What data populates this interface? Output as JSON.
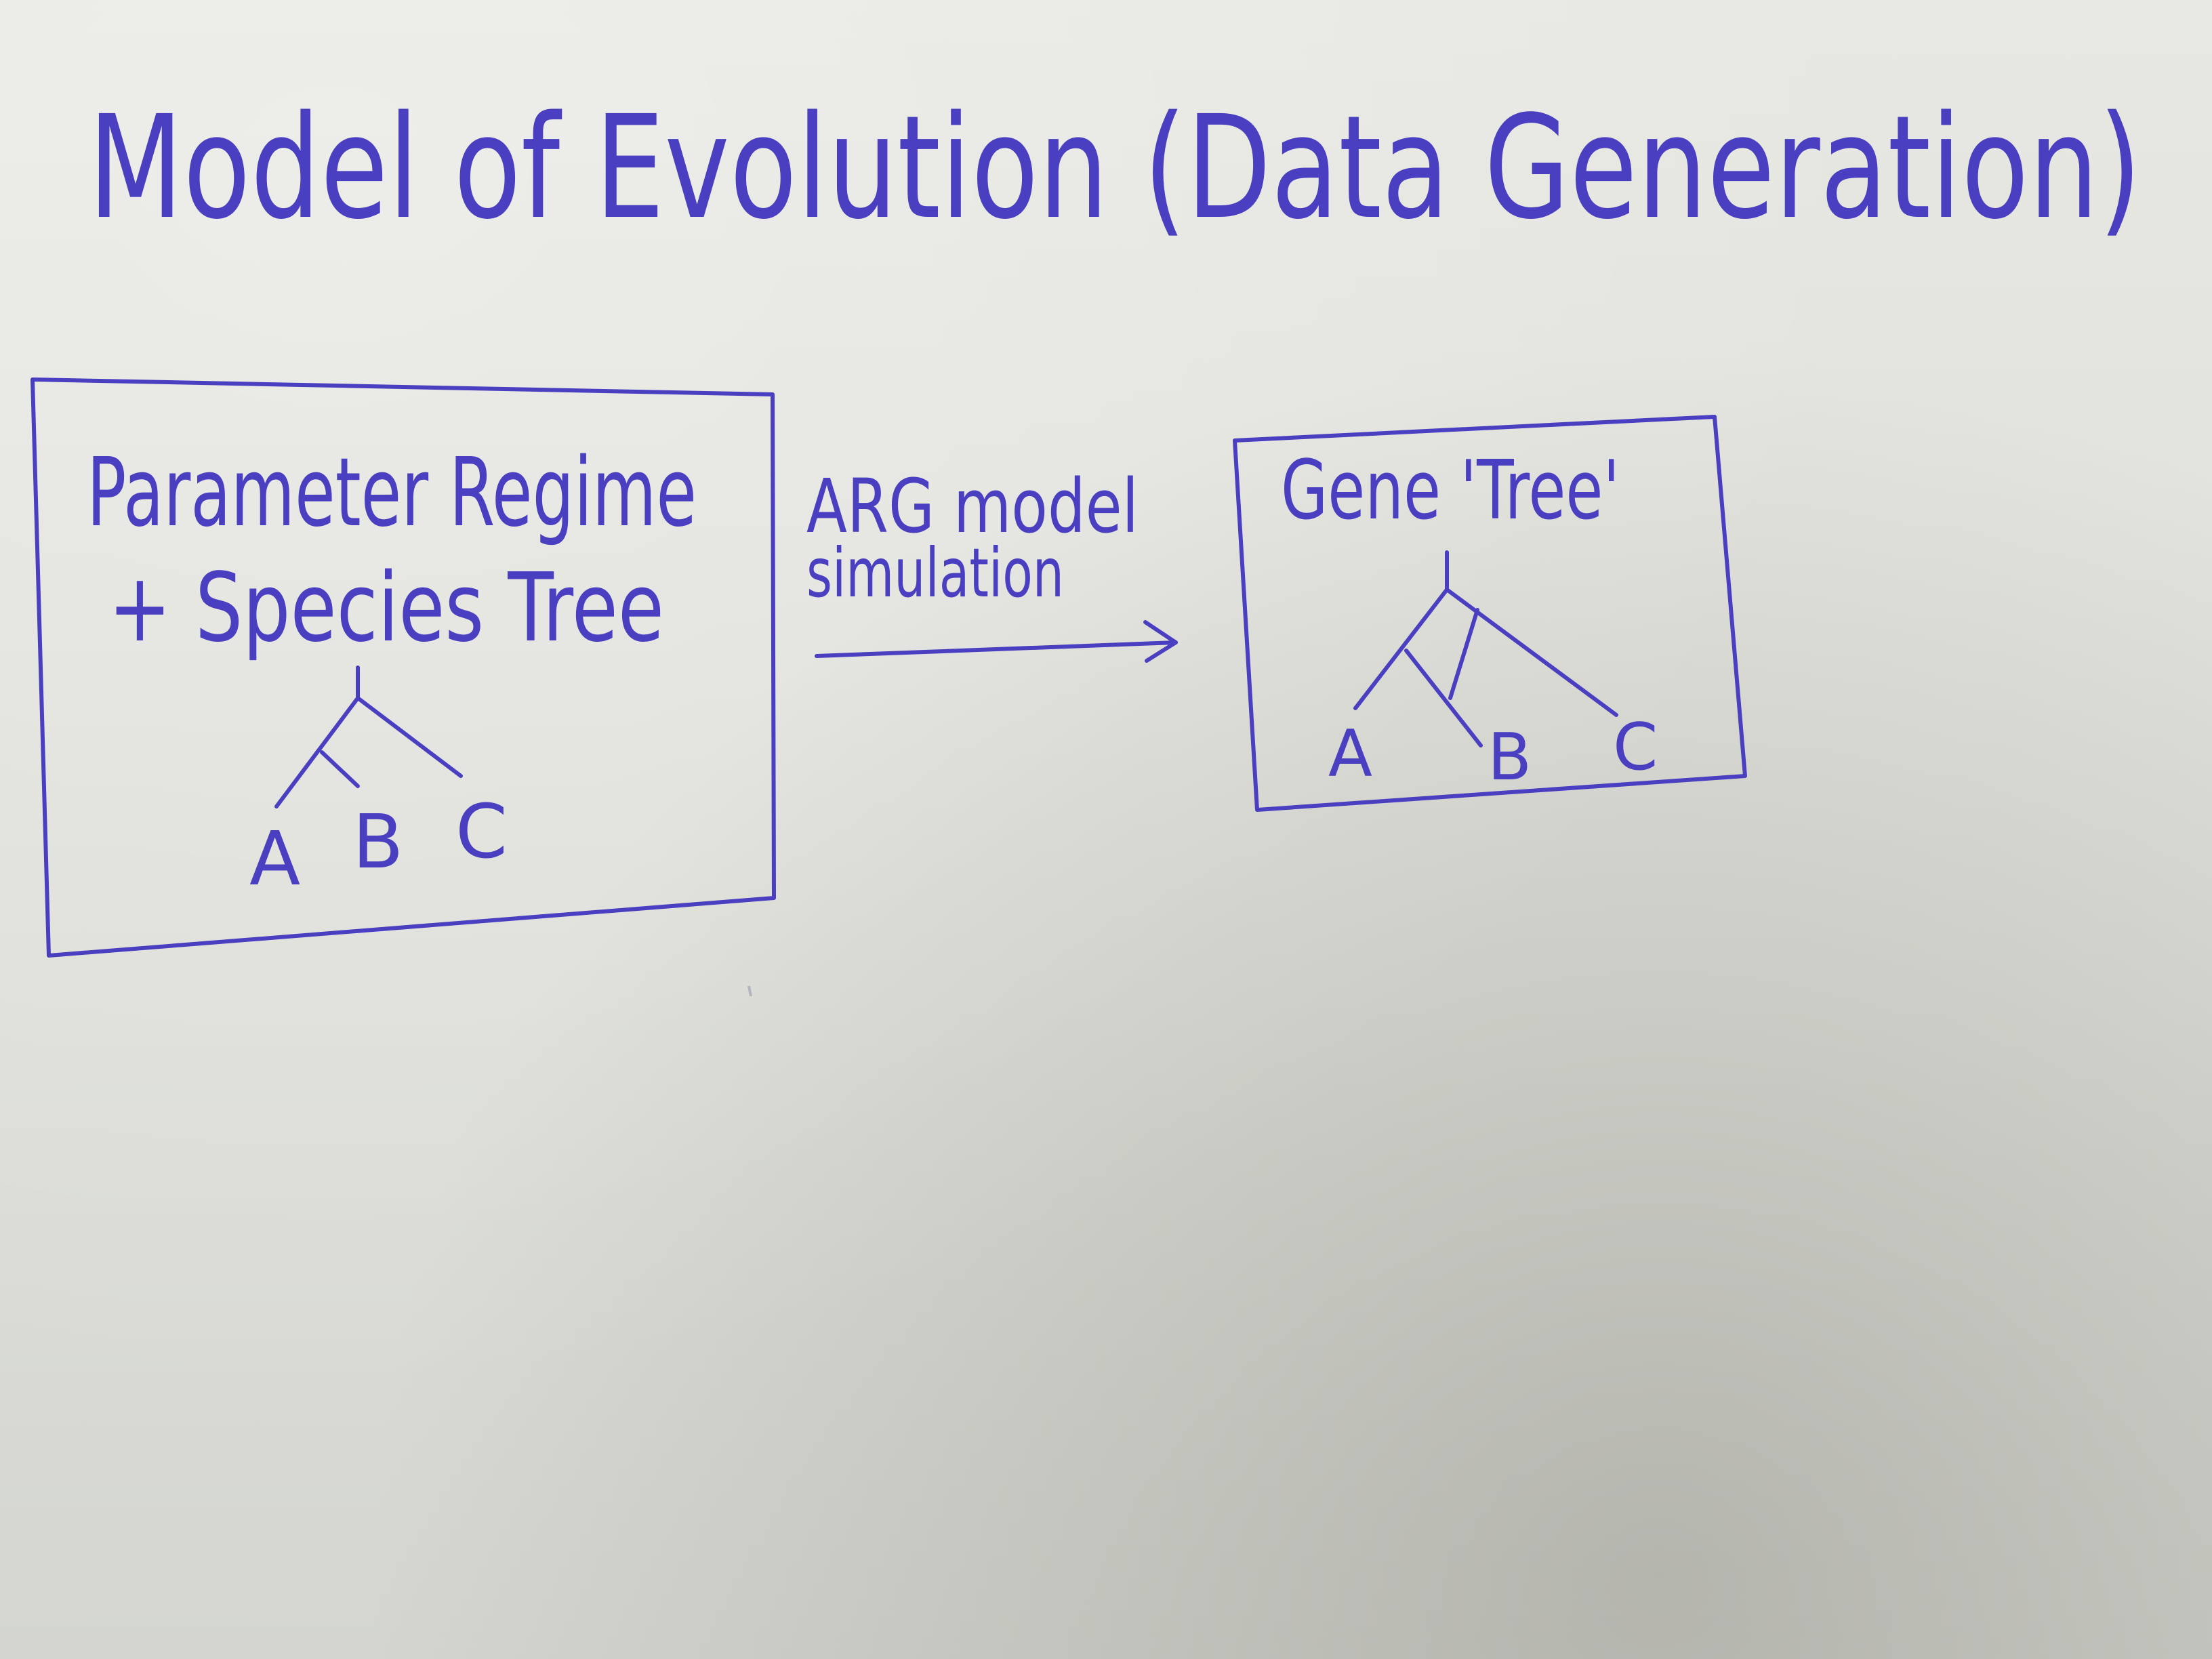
{
  "title": "Model of Evolution (Data Generation)",
  "colors": {
    "ink": "#4a3fc0",
    "paper": "#e6e5df"
  },
  "left_box": {
    "line1": "Parameter Regime",
    "line2": "+ Species Tree",
    "leaves": [
      "A",
      "B",
      "C"
    ]
  },
  "arrow": {
    "line1": "ARG model",
    "line2": "simulation"
  },
  "right_box": {
    "title": "Gene 'Tree'",
    "leaves": [
      "A",
      "B",
      "C"
    ]
  }
}
